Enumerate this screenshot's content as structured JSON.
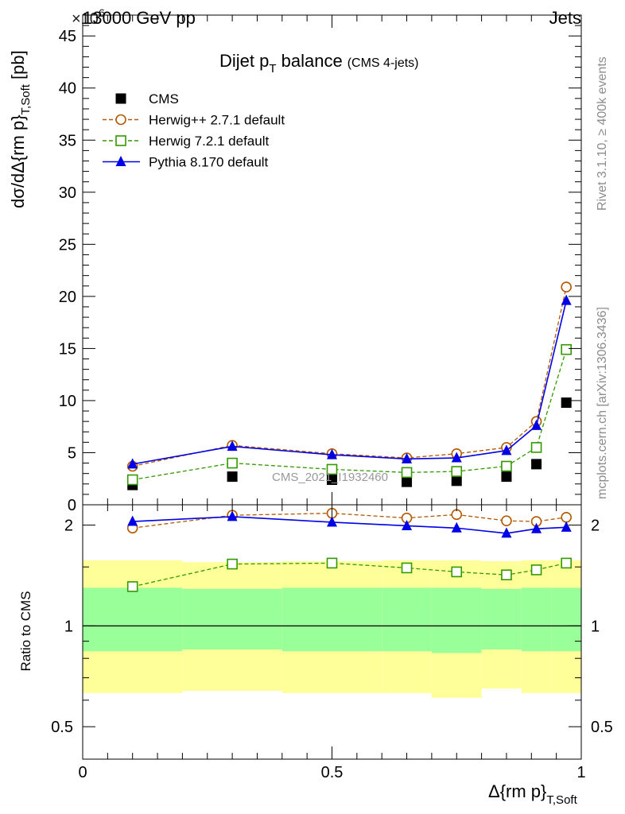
{
  "header": {
    "energy": "13000 GeV pp",
    "process": "Jets",
    "exponent_marker": "×10",
    "exponent": "6"
  },
  "side_labels": {
    "rivet": "Rivet 3.1.10, ≥ 400k events",
    "mcplots": "mcplots.cern.ch [arXiv:1306.3436]"
  },
  "chart_data": [
    {
      "type": "scatter",
      "title": "Dijet p",
      "title_sub": "T",
      "title_rest": " balance",
      "title_note": "(CMS 4-jets)",
      "watermark": "CMS_2021_I1932460",
      "ylabel": "dσ/dΔ{rm p}",
      "ylabel_sub": "T,Soft",
      "ylabel_unit": " [pb]",
      "y_scale_factor": "×10^6",
      "xlim": [
        0,
        1
      ],
      "ylim": [
        0,
        47
      ],
      "xticks": [
        "0",
        "0.5",
        "1"
      ],
      "yticks": [
        0,
        5,
        10,
        15,
        20,
        25,
        30,
        35,
        40,
        45
      ],
      "x": [
        0.1,
        0.3,
        0.5,
        0.65,
        0.75,
        0.85,
        0.91,
        0.97
      ],
      "series": [
        {
          "name": "CMS",
          "marker": "square-filled",
          "color": "#000000",
          "values": [
            1.9,
            2.7,
            2.4,
            2.2,
            2.3,
            2.7,
            3.9,
            9.8
          ]
        },
        {
          "name": "Herwig++ 2.7.1 default",
          "marker": "circle-open",
          "color": "#b35900",
          "values": [
            3.7,
            5.7,
            4.9,
            4.5,
            4.9,
            5.5,
            8.0,
            20.9
          ]
        },
        {
          "name": "Herwig 7.2.1 default",
          "marker": "square-open",
          "color": "#339900",
          "values": [
            2.4,
            4.0,
            3.4,
            3.1,
            3.2,
            3.7,
            5.5,
            14.9
          ]
        },
        {
          "name": "Pythia 8.170 default",
          "marker": "triangle-filled",
          "color": "#0000e6",
          "values": [
            3.9,
            5.6,
            4.8,
            4.4,
            4.5,
            5.2,
            7.6,
            19.6
          ]
        }
      ],
      "legend_position": "top-left"
    },
    {
      "type": "scatter",
      "ylabel": "Ratio to CMS",
      "xlabel": "Δ{rm p}",
      "xlabel_sub": "T,Soft",
      "xlim": [
        0,
        1
      ],
      "ylim": [
        0.4,
        2.3
      ],
      "yscale": "log",
      "xticks": [
        "0",
        "0.5",
        "1"
      ],
      "yticks": [
        "0.5",
        "1",
        "2"
      ],
      "x": [
        0.1,
        0.3,
        0.5,
        0.65,
        0.75,
        0.85,
        0.91,
        0.97
      ],
      "bands": {
        "bin_edges": [
          0.0,
          0.2,
          0.4,
          0.6,
          0.7,
          0.8,
          0.88,
          0.94,
          1.0
        ],
        "stat_syst_lo": [
          0.84,
          0.85,
          0.84,
          0.84,
          0.83,
          0.85,
          0.84,
          0.84
        ],
        "stat_syst_hi": [
          1.3,
          1.29,
          1.3,
          1.3,
          1.3,
          1.29,
          1.3,
          1.3
        ],
        "total_lo": [
          0.63,
          0.64,
          0.63,
          0.63,
          0.61,
          0.65,
          0.63,
          0.63
        ],
        "total_hi": [
          1.57,
          1.55,
          1.56,
          1.57,
          1.57,
          1.56,
          1.57,
          1.57
        ],
        "inner_color": "#99ff99",
        "outer_color": "#ffff99"
      },
      "series": [
        {
          "name": "Herwig++ 2.7.1 default",
          "marker": "circle-open",
          "color": "#b35900",
          "values": [
            1.96,
            2.14,
            2.17,
            2.1,
            2.15,
            2.06,
            2.05,
            2.11
          ]
        },
        {
          "name": "Herwig 7.2.1 default",
          "marker": "square-open",
          "color": "#339900",
          "values": [
            1.31,
            1.53,
            1.54,
            1.49,
            1.45,
            1.42,
            1.47,
            1.54
          ]
        },
        {
          "name": "Pythia 8.170 default",
          "marker": "triangle-filled",
          "color": "#0000e6",
          "values": [
            2.05,
            2.12,
            2.04,
            1.99,
            1.96,
            1.89,
            1.95,
            1.97
          ]
        }
      ]
    }
  ]
}
